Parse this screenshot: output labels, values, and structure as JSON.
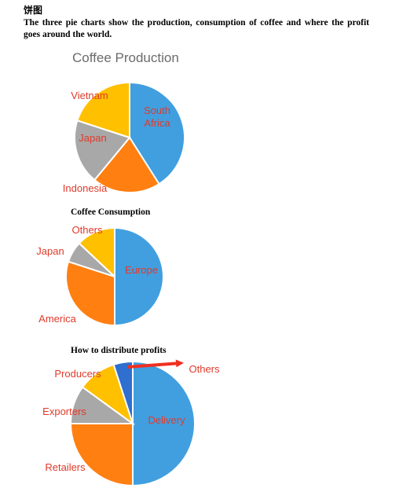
{
  "document": {
    "heading": "饼图",
    "intro": "The three pie charts show the production, consumption of coffee and where the profit goes around the world."
  },
  "colors": {
    "blue": "#419FDF",
    "orange": "#FF7F11",
    "gray": "#A8A8A8",
    "yellow": "#FFC000",
    "darkblue": "#2E6FCF",
    "label": "#E03A2A",
    "arrow": "#F03020"
  },
  "chart_data": [
    {
      "type": "pie",
      "title": "Coffee Production",
      "labels": [
        "South Africa",
        "Indonesia",
        "Japan",
        "Vietnam"
      ],
      "values": [
        41,
        20,
        19,
        20
      ],
      "colors": [
        "#419FDF",
        "#FF7F11",
        "#A8A8A8",
        "#FFC000"
      ]
    },
    {
      "type": "pie",
      "title": "Coffee Consumption",
      "labels": [
        "Europe",
        "America",
        "Japan",
        "Others"
      ],
      "values": [
        50,
        30,
        7,
        13
      ],
      "colors": [
        "#419FDF",
        "#FF7F11",
        "#A8A8A8",
        "#FFC000"
      ]
    },
    {
      "type": "pie",
      "title": "How to distribute profits",
      "labels": [
        "Delivery",
        "Retailers",
        "Exporters",
        "Producers",
        "Others"
      ],
      "values": [
        50,
        25,
        10,
        10,
        5
      ],
      "colors": [
        "#419FDF",
        "#FF7F11",
        "#A8A8A8",
        "#FFC000",
        "#2E6FCF"
      ]
    }
  ]
}
